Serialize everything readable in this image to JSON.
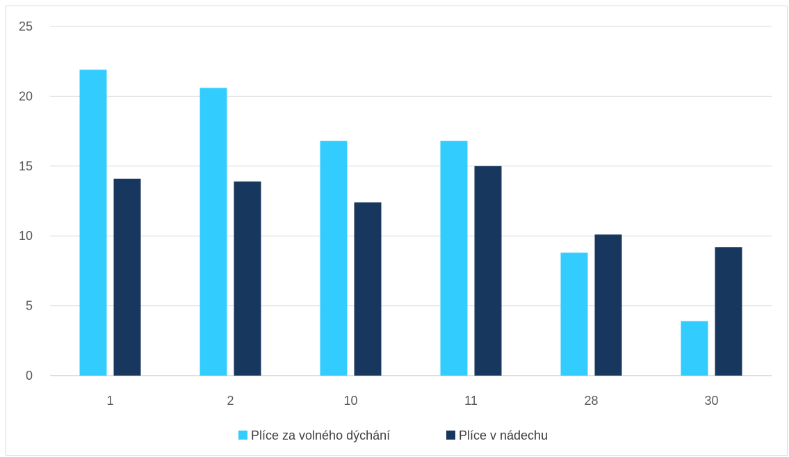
{
  "chart_data": {
    "type": "bar",
    "categories": [
      "1",
      "2",
      "10",
      "11",
      "28",
      "30"
    ],
    "series": [
      {
        "name": "Plíce za volného dýchání",
        "values": [
          21.9,
          20.6,
          16.8,
          16.8,
          8.8,
          3.9
        ],
        "color": "#33ccff"
      },
      {
        "name": "Plíce v nádechu",
        "values": [
          14.1,
          13.9,
          12.4,
          15.0,
          10.1,
          9.2
        ],
        "color": "#17375e"
      }
    ],
    "title": "",
    "xlabel": "",
    "ylabel": "",
    "ylim": [
      0,
      25
    ],
    "yticks": [
      "0",
      "5",
      "10",
      "15",
      "20",
      "25"
    ],
    "grid": true,
    "legend_position": "bottom"
  }
}
